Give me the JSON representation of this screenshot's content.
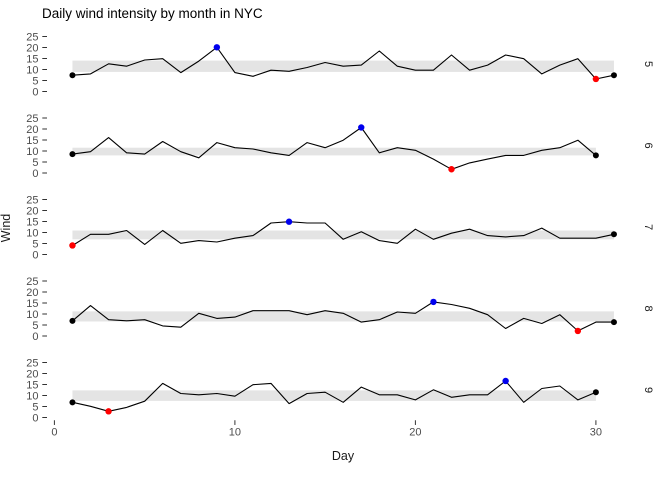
{
  "chart_data": {
    "type": "line",
    "title": "Daily wind intensity by month in NYC",
    "xlabel": "Day",
    "ylabel": "Wind",
    "facet_variable": "Month",
    "facet_strip_side": "right",
    "x_ticks": [
      0,
      10,
      20,
      30
    ],
    "x_tick_labels": [
      "0",
      "10",
      "20",
      "30"
    ],
    "y_ticks": [
      0,
      5,
      10,
      15,
      20,
      25
    ],
    "y_tick_labels": [
      "0",
      "5",
      "10",
      "15",
      "20",
      "25"
    ],
    "ylim": [
      0,
      25
    ],
    "xlim": [
      1,
      31
    ],
    "grid": "off",
    "colors": {
      "line": "#000000",
      "max_point": "#0000EE",
      "min_point": "#FF0000",
      "endpoint": "#000000",
      "band": "#E4E4E4",
      "axis_text": "#4D4D4D",
      "tick_mark": "#333333",
      "facet_text": "#1A1A1A"
    },
    "facets": [
      {
        "label": "5",
        "band": [
          8.9,
          14.05
        ],
        "max": {
          "day": 9,
          "value": 20.1
        },
        "min": {
          "day": 30,
          "value": 5.7
        },
        "values": [
          7.4,
          8.0,
          12.6,
          11.5,
          14.3,
          14.9,
          8.6,
          13.8,
          20.1,
          8.6,
          6.9,
          9.7,
          9.2,
          10.9,
          13.2,
          11.5,
          12.0,
          18.4,
          11.5,
          9.7,
          9.7,
          16.6,
          9.7,
          12.0,
          16.6,
          14.9,
          8.0,
          12.0,
          14.9,
          5.7,
          7.4
        ]
      },
      {
        "label": "6",
        "band": [
          8.0,
          11.5
        ],
        "max": {
          "day": 17,
          "value": 20.7
        },
        "min": {
          "day": 22,
          "value": 1.7
        },
        "values": [
          8.6,
          9.7,
          16.1,
          9.2,
          8.6,
          14.3,
          9.7,
          6.9,
          13.8,
          11.5,
          10.9,
          9.2,
          8.0,
          13.8,
          11.5,
          14.9,
          20.7,
          9.2,
          11.5,
          10.3,
          6.3,
          1.7,
          4.6,
          6.3,
          8.0,
          8.0,
          10.3,
          11.5,
          14.9,
          8.0
        ]
      },
      {
        "label": "7",
        "band": [
          6.9,
          10.9
        ],
        "max": {
          "day": 13,
          "value": 14.9
        },
        "min": {
          "day": 1,
          "value": 4.1
        },
        "values": [
          4.1,
          9.2,
          9.2,
          10.9,
          4.6,
          10.9,
          5.1,
          6.3,
          5.7,
          7.4,
          8.6,
          14.3,
          14.9,
          14.3,
          14.3,
          6.9,
          10.3,
          6.3,
          5.1,
          11.5,
          6.9,
          9.7,
          11.5,
          8.6,
          8.0,
          8.6,
          12.0,
          7.4,
          7.4,
          7.4,
          9.2
        ]
      },
      {
        "label": "8",
        "band": [
          6.6,
          11.2
        ],
        "max": {
          "day": 21,
          "value": 15.5
        },
        "min": {
          "day": 29,
          "value": 2.3
        },
        "values": [
          6.9,
          13.8,
          7.4,
          6.9,
          7.4,
          4.6,
          4.0,
          10.3,
          8.0,
          8.6,
          11.5,
          11.5,
          11.5,
          9.7,
          11.5,
          10.3,
          6.3,
          7.4,
          10.9,
          10.3,
          15.5,
          14.3,
          12.6,
          9.7,
          3.4,
          8.0,
          5.7,
          9.7,
          2.3,
          6.3,
          6.3
        ]
      },
      {
        "label": "9",
        "band": [
          7.55,
          12.33
        ],
        "max": {
          "day": 25,
          "value": 16.6
        },
        "min": {
          "day": 3,
          "value": 2.8
        },
        "values": [
          6.9,
          5.1,
          2.8,
          4.6,
          7.4,
          15.5,
          10.9,
          10.3,
          10.9,
          9.7,
          14.9,
          15.5,
          6.3,
          10.9,
          11.5,
          6.9,
          13.8,
          10.3,
          10.3,
          8.0,
          12.6,
          9.2,
          10.3,
          10.3,
          16.6,
          6.9,
          13.2,
          14.3,
          8.0,
          11.5
        ]
      }
    ]
  }
}
